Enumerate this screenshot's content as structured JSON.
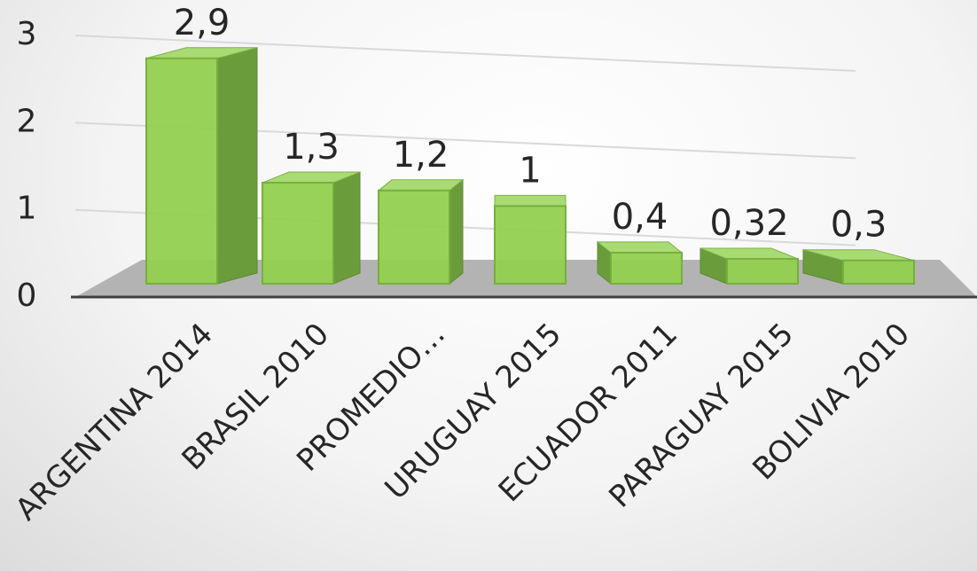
{
  "chart_data": {
    "type": "bar",
    "categories": [
      "ARGENTINA 2014",
      "BRASIL 2010",
      "PROMEDIO…",
      "URUGUAY 2015",
      "ECUADOR 2011",
      "PARAGUAY 2015",
      "BOLIVIA 2010"
    ],
    "values": [
      2.9,
      1.3,
      1.2,
      1,
      0.4,
      0.32,
      0.3
    ],
    "value_labels": [
      "2,9",
      "1,3",
      "1,2",
      "1",
      "0,4",
      "0,32",
      "0,3"
    ],
    "color": "#92d050",
    "ylim": [
      0,
      3
    ],
    "yticks": [
      0,
      1,
      2,
      3
    ],
    "grid": true
  }
}
